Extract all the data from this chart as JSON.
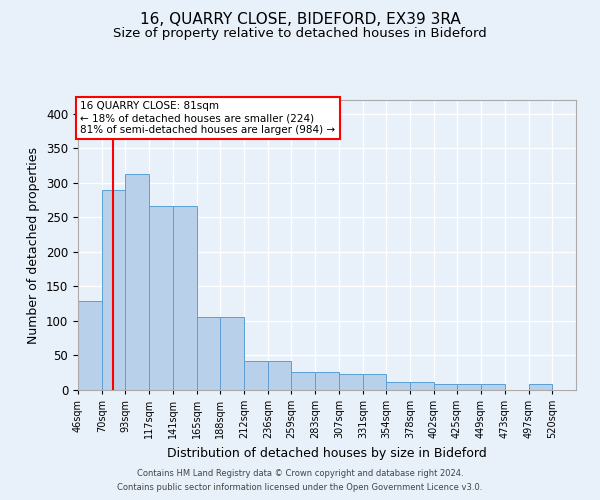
{
  "title1": "16, QUARRY CLOSE, BIDEFORD, EX39 3RA",
  "title2": "Size of property relative to detached houses in Bideford",
  "xlabel": "Distribution of detached houses by size in Bideford",
  "ylabel": "Number of detached properties",
  "categories": [
    "46sqm",
    "70sqm",
    "93sqm",
    "117sqm",
    "141sqm",
    "165sqm",
    "188sqm",
    "212sqm",
    "236sqm",
    "259sqm",
    "283sqm",
    "307sqm",
    "331sqm",
    "354sqm",
    "378sqm",
    "402sqm",
    "425sqm",
    "449sqm",
    "473sqm",
    "497sqm",
    "520sqm"
  ],
  "bin_edges": [
    46,
    70,
    93,
    117,
    141,
    165,
    188,
    212,
    236,
    259,
    283,
    307,
    331,
    354,
    378,
    402,
    425,
    449,
    473,
    497,
    520
  ],
  "bin_heights": [
    129,
    289,
    313,
    267,
    267,
    106,
    106,
    42,
    42,
    26,
    26,
    23,
    23,
    12,
    12,
    9,
    9,
    9,
    0,
    9
  ],
  "bar_color": "#b8d0ea",
  "bar_edge_color": "#5a9fd4",
  "red_line_x": 81,
  "annotation_text": "16 QUARRY CLOSE: 81sqm\n← 18% of detached houses are smaller (224)\n81% of semi-detached houses are larger (984) →",
  "ylim": [
    0,
    420
  ],
  "yticks": [
    0,
    50,
    100,
    150,
    200,
    250,
    300,
    350,
    400
  ],
  "bg_color": "#e8f0fa",
  "plot_bg_color": "#e8f0fa",
  "footer1": "Contains HM Land Registry data © Crown copyright and database right 2024.",
  "footer2": "Contains public sector information licensed under the Open Government Licence v3.0.",
  "grid_color": "#ffffff",
  "title1_fontsize": 11,
  "title2_fontsize": 9.5,
  "xlabel_fontsize": 9,
  "ylabel_fontsize": 9,
  "annot_fontsize": 7.5,
  "footer_fontsize": 6
}
